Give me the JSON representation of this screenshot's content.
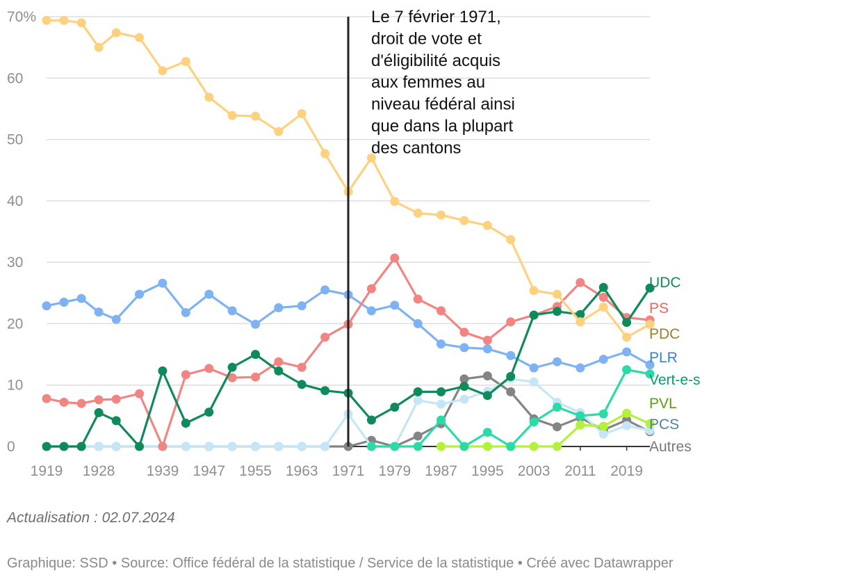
{
  "chart_data": {
    "type": "line",
    "title": "",
    "xlabel": "",
    "ylabel": "",
    "ylim": [
      0,
      70
    ],
    "y_ticks": [
      {
        "value": 0,
        "label": "0"
      },
      {
        "value": 10,
        "label": "10"
      },
      {
        "value": 20,
        "label": "20"
      },
      {
        "value": 30,
        "label": "30"
      },
      {
        "value": 40,
        "label": "40"
      },
      {
        "value": 50,
        "label": "50"
      },
      {
        "value": 60,
        "label": "60"
      },
      {
        "value": 70,
        "label": "70%"
      }
    ],
    "x_ticks": [
      {
        "value": 1919,
        "label": "1919"
      },
      {
        "value": 1928,
        "label": "1928"
      },
      {
        "value": 1939,
        "label": "1939"
      },
      {
        "value": 1947,
        "label": "1947"
      },
      {
        "value": 1955,
        "label": "1955"
      },
      {
        "value": 1963,
        "label": "1963"
      },
      {
        "value": 1971,
        "label": "1971"
      },
      {
        "value": 1979,
        "label": "1979"
      },
      {
        "value": 1987,
        "label": "1987"
      },
      {
        "value": 1995,
        "label": "1995"
      },
      {
        "value": 2003,
        "label": "2003"
      },
      {
        "value": 2011,
        "label": "2011"
      },
      {
        "value": 2019,
        "label": "2019"
      }
    ],
    "x": [
      1919,
      1922,
      1925,
      1928,
      1931,
      1935,
      1939,
      1943,
      1947,
      1951,
      1955,
      1959,
      1963,
      1967,
      1971,
      1975,
      1979,
      1983,
      1987,
      1991,
      1995,
      1999,
      2003,
      2007,
      2011,
      2015,
      2019,
      2023
    ],
    "series": [
      {
        "name": "Autres",
        "color": "#848484",
        "values": [
          0,
          0,
          0,
          0,
          0,
          0,
          0,
          0,
          0,
          0,
          0,
          0,
          0,
          0,
          0,
          1,
          0,
          1.7,
          3.7,
          11,
          11.5,
          8.9,
          4.5,
          3.2,
          4.7,
          2.7,
          4.3,
          2.4
        ]
      },
      {
        "name": "PCS",
        "color": "#c5e6f6",
        "values": [
          0,
          0,
          0,
          0,
          0,
          0,
          0,
          0,
          0,
          0,
          0,
          0,
          0,
          0,
          5.3,
          0,
          0,
          7.5,
          6.9,
          7.7,
          9,
          11,
          10.5,
          7.2,
          5.5,
          2,
          3.4,
          2.6
        ]
      },
      {
        "name": "PVL",
        "color": "#b2f238",
        "values": [
          null,
          null,
          null,
          null,
          null,
          null,
          null,
          null,
          null,
          null,
          null,
          null,
          null,
          null,
          null,
          null,
          null,
          null,
          0,
          0,
          0,
          0,
          0,
          0,
          3.5,
          3.3,
          5.4,
          3.7
        ]
      },
      {
        "name": "Vert-e-s",
        "color": "#2adba7",
        "values": [
          null,
          null,
          null,
          null,
          null,
          null,
          null,
          null,
          null,
          null,
          null,
          null,
          null,
          null,
          null,
          0,
          0,
          0,
          4.3,
          0,
          2.3,
          0,
          4,
          6.4,
          5,
          5.3,
          12.5,
          11.8
        ]
      },
      {
        "name": "PLR",
        "color": "#7eb2f2",
        "values": [
          22.9,
          23.5,
          24.1,
          21.9,
          20.7,
          24.8,
          26.6,
          21.8,
          24.8,
          22.1,
          19.9,
          22.6,
          22.9,
          25.5,
          24.7,
          22.1,
          23,
          20,
          16.7,
          16.1,
          15.9,
          14.8,
          12.8,
          13.8,
          12.8,
          14.2,
          15.4,
          13.3
        ]
      },
      {
        "name": "PS",
        "color": "#f28482",
        "values": [
          7.8,
          7.2,
          7,
          7.6,
          7.7,
          8.6,
          0,
          11.7,
          12.7,
          11.2,
          11.3,
          13.8,
          12.9,
          17.8,
          19.9,
          25.7,
          30.7,
          24,
          22.1,
          18.6,
          17.3,
          20.3,
          21.4,
          22.8,
          26.7,
          24.3,
          21,
          20.6
        ]
      },
      {
        "name": "UDC",
        "color": "#0f8a5a",
        "values": [
          0,
          0,
          0,
          5.5,
          4.2,
          0,
          12.3,
          3.8,
          5.6,
          12.9,
          15,
          12.3,
          10.1,
          9.1,
          8.7,
          4.3,
          6.4,
          8.9,
          8.9,
          9.8,
          8.3,
          11.4,
          21.4,
          22,
          21.5,
          25.9,
          20.2,
          25.8
        ]
      },
      {
        "name": "PDC",
        "color": "#fdd17e",
        "values": [
          69.4,
          69.4,
          69,
          65,
          67.4,
          66.6,
          61.2,
          62.7,
          56.9,
          53.9,
          53.8,
          51.3,
          54.2,
          47.7,
          41.5,
          47,
          39.9,
          38,
          37.7,
          36.8,
          36,
          33.7,
          25.4,
          24.8,
          20.3,
          22.7,
          17.8,
          19.9
        ]
      }
    ],
    "end_labels": [
      {
        "name": "UDC",
        "color": "#0f8a5a"
      },
      {
        "name": "PS",
        "color": "#e06765"
      },
      {
        "name": "PDC",
        "color": "#a07c2e"
      },
      {
        "name": "PLR",
        "color": "#3d7fc9"
      },
      {
        "name": "Vert-e-s",
        "color": "#0f9a6a"
      },
      {
        "name": "PVL",
        "color": "#5c9a10"
      },
      {
        "name": "PCS",
        "color": "#4f7fa3"
      },
      {
        "name": "Autres",
        "color": "#777777"
      }
    ],
    "annotation": {
      "x": 1971,
      "lines": [
        "Le 7 février 1971,",
        "droit de vote et",
        "d'éligibilité acquis",
        "aux femmes au",
        "niveau fédéral ainsi",
        "que dans la plupart",
        "des cantons"
      ]
    }
  },
  "update_text": "Actualisation : 02.07.2024",
  "footer_text": "Graphique: SSD • Source: Office fédéral de la statistique / Service de la statistique • Créé avec Datawrapper"
}
